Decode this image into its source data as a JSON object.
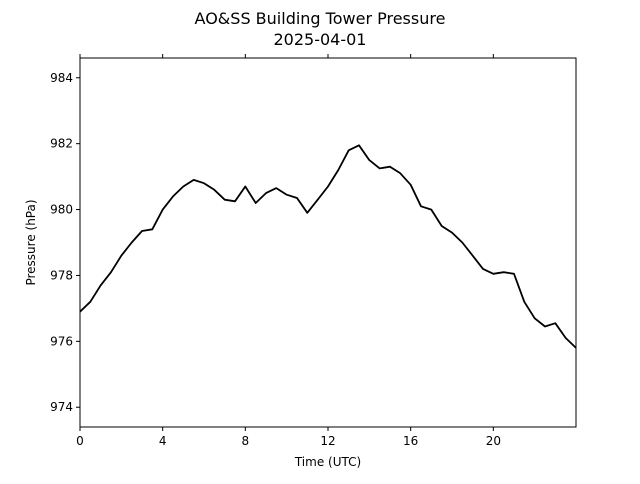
{
  "chart_data": {
    "type": "line",
    "title": "AO&SS Building Tower Pressure",
    "subtitle": "2025-04-01",
    "xlabel": "Time (UTC)",
    "ylabel": "Pressure (hPa)",
    "xlim": [
      0,
      24
    ],
    "ylim": [
      973.4,
      984.6
    ],
    "x_ticks": [
      0,
      4,
      8,
      12,
      16,
      20
    ],
    "x_tick_labels": [
      "0",
      "4",
      "8",
      "12",
      "16",
      "20"
    ],
    "y_ticks": [
      974,
      976,
      978,
      980,
      982,
      984
    ],
    "y_tick_labels": [
      "974",
      "976",
      "978",
      "980",
      "982",
      "984"
    ],
    "grid": false,
    "line_color": "#000000",
    "series": [
      {
        "x": [
          0,
          0.5,
          1,
          1.5,
          2,
          2.5,
          3,
          3.5,
          4,
          4.5,
          5,
          5.5,
          6,
          6.5,
          7,
          7.5,
          8,
          8.5,
          9,
          9.5,
          10,
          10.5,
          11,
          11.5,
          12,
          12.5,
          13,
          13.5,
          14,
          14.5,
          15,
          15.5,
          16,
          16.5,
          17,
          17.5,
          18,
          18.5,
          19,
          19.5,
          20,
          20.5,
          21,
          21.5,
          22,
          22.5,
          23,
          23.5,
          24
        ],
        "values": [
          976.9,
          977.2,
          977.7,
          978.1,
          978.6,
          979.0,
          979.35,
          979.4,
          980.0,
          980.4,
          980.7,
          980.9,
          980.8,
          980.6,
          980.3,
          980.25,
          980.7,
          980.2,
          980.5,
          980.65,
          980.45,
          980.35,
          979.9,
          980.3,
          980.7,
          981.2,
          981.8,
          981.95,
          981.5,
          981.25,
          981.3,
          981.1,
          980.75,
          980.1,
          980.0,
          979.5,
          979.3,
          979.0,
          978.6,
          978.2,
          978.05,
          978.1,
          978.05,
          977.2,
          976.7,
          976.45,
          976.55,
          976.1,
          975.8
        ]
      }
    ]
  }
}
